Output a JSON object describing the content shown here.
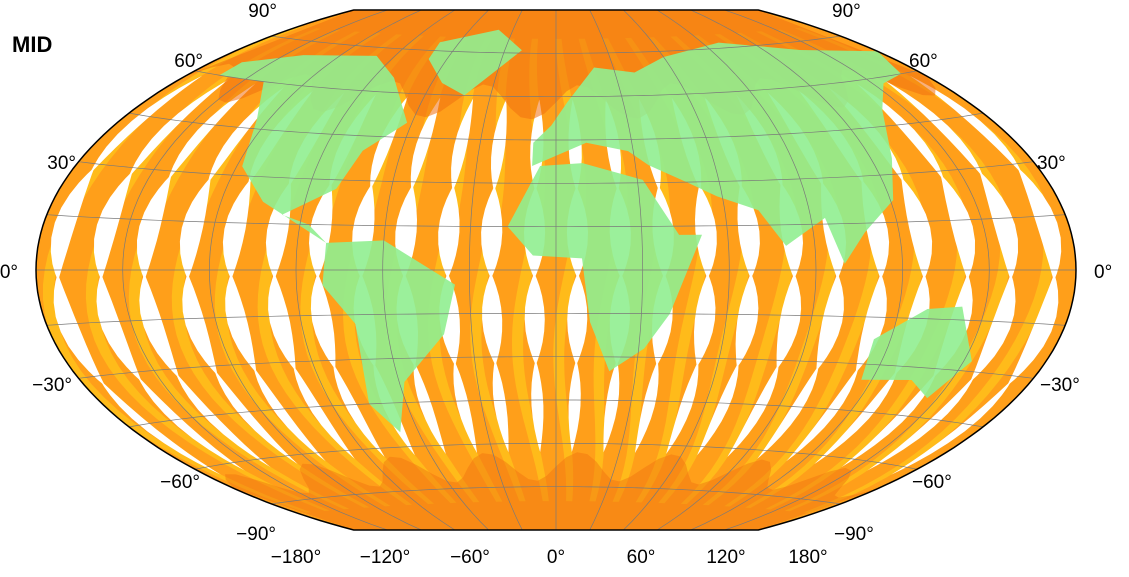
{
  "panel_label": "MID",
  "colors": {
    "ocean_swath": "#ff9f1a",
    "swath_light": "#ffc21a",
    "swath_highlight": "#ffe066",
    "swath_dark": "#f07010",
    "land": "#90ee90",
    "grid": "#7a7a7a",
    "border": "#000000",
    "background": "#ffffff"
  },
  "map": {
    "projection": "Winkel-Tripel",
    "lat_labels_left": [
      "90°",
      "60°",
      "30°",
      "0°",
      "−30°",
      "−60°",
      "−90°"
    ],
    "lat_labels_right": [
      "90°",
      "60°",
      "30°",
      "0°",
      "−30°",
      "−60°",
      "−90°"
    ],
    "lon_labels_bottom": [
      "−180°",
      "−120°",
      "−60°",
      "0°",
      "60°",
      "120°",
      "180°"
    ]
  }
}
